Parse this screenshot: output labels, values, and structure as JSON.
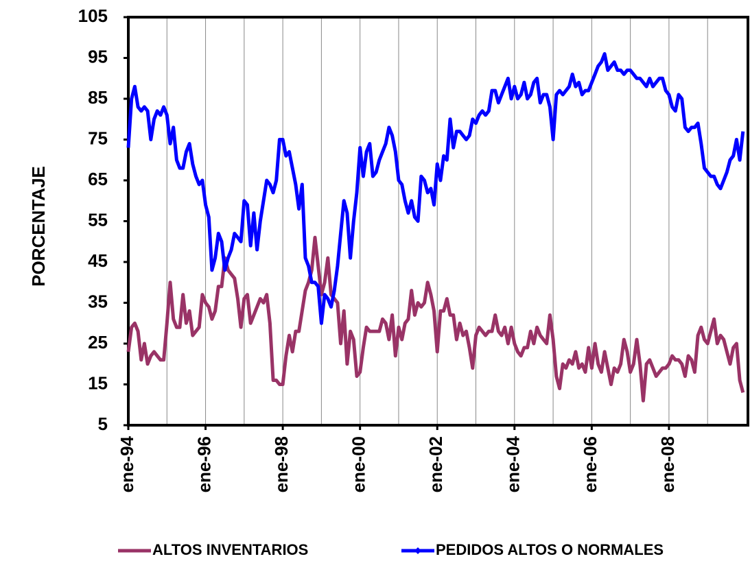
{
  "chart_data": {
    "type": "line",
    "ylabel": "PORCENTAJE",
    "categories": [
      "ene-94",
      null,
      null,
      null,
      null,
      null,
      null,
      null,
      null,
      null,
      null,
      null,
      null,
      null,
      null,
      null,
      null,
      null,
      null,
      null,
      null,
      null,
      null,
      null,
      "ene-96",
      null,
      null,
      null,
      null,
      null,
      null,
      null,
      null,
      null,
      null,
      null,
      null,
      null,
      null,
      null,
      null,
      null,
      null,
      null,
      null,
      null,
      null,
      null,
      "ene-98",
      null,
      null,
      null,
      null,
      null,
      null,
      null,
      null,
      null,
      null,
      null,
      null,
      null,
      null,
      null,
      null,
      null,
      null,
      null,
      null,
      null,
      null,
      null,
      "ene-00",
      null,
      null,
      null,
      null,
      null,
      null,
      null,
      null,
      null,
      null,
      null,
      null,
      null,
      null,
      null,
      null,
      null,
      null,
      null,
      null,
      null,
      null,
      null,
      "ene-02",
      null,
      null,
      null,
      null,
      null,
      null,
      null,
      null,
      null,
      null,
      null,
      null,
      null,
      null,
      null,
      null,
      null,
      null,
      null,
      null,
      null,
      null,
      null,
      "ene-04",
      null,
      null,
      null,
      null,
      null,
      null,
      null,
      null,
      null,
      null,
      null,
      null,
      null,
      null,
      null,
      null,
      null,
      null,
      null,
      null,
      null,
      null,
      null,
      "ene-06",
      null,
      null,
      null,
      null,
      null,
      null,
      null,
      null,
      null,
      null,
      null,
      null,
      null,
      null,
      null,
      null,
      null,
      null,
      null,
      null,
      null,
      null,
      null,
      "ene-08",
      null,
      null,
      null,
      null,
      null,
      null,
      null,
      null,
      null,
      null,
      null,
      null,
      null,
      null,
      null,
      null,
      null,
      null,
      null,
      null,
      null,
      null,
      null
    ],
    "series": [
      {
        "name": "ALTOS INVENTARIOS",
        "color": "#993366",
        "values": [
          23,
          29,
          30,
          28,
          21,
          25,
          20,
          22,
          23,
          22,
          21,
          21,
          30,
          40,
          31,
          29,
          29,
          37,
          30,
          33,
          27,
          28,
          29,
          37,
          35,
          34,
          31,
          33,
          39,
          39,
          46,
          43,
          42,
          41,
          36,
          29,
          36,
          37,
          30,
          32,
          34,
          36,
          35,
          37,
          30,
          16,
          16,
          15,
          15,
          22,
          27,
          23,
          28,
          28,
          33,
          38,
          40,
          43,
          51,
          44,
          37,
          40,
          46,
          37,
          36,
          35,
          25,
          33,
          20,
          28,
          26,
          17,
          18,
          24,
          29,
          28,
          28,
          28,
          28,
          31,
          30,
          26,
          32,
          22,
          29,
          26,
          30,
          31,
          38,
          32,
          35,
          34,
          35,
          40,
          37,
          33,
          23,
          33,
          33,
          36,
          32,
          32,
          26,
          30,
          27,
          28,
          24,
          19,
          27,
          29,
          28,
          27,
          28,
          28,
          32,
          28,
          27,
          29,
          25,
          29,
          25,
          23,
          22,
          24,
          24,
          28,
          25,
          29,
          27,
          26,
          25,
          32,
          26,
          17,
          14,
          20,
          19,
          21,
          20,
          23,
          19,
          20,
          18,
          24,
          19,
          25,
          20,
          18,
          23,
          19,
          15,
          19,
          18,
          20,
          26,
          23,
          18,
          20,
          26,
          20,
          11,
          20,
          21,
          19,
          17,
          18,
          19,
          19,
          20,
          22,
          21,
          21,
          20,
          17,
          22,
          21,
          18,
          27,
          29,
          26,
          25,
          28,
          31,
          25,
          27,
          26,
          23,
          20,
          24,
          25,
          16,
          13
        ]
      },
      {
        "name": "PEDIDOS ALTOS O NORMALES",
        "color": "#0000FF",
        "marker": "diamond",
        "values": [
          73,
          85,
          88,
          83,
          82,
          83,
          82,
          75,
          80,
          82,
          81,
          83,
          81,
          74,
          78,
          70,
          68,
          68,
          72,
          74,
          69,
          66,
          64,
          65,
          59,
          56,
          43,
          46,
          52,
          50,
          43,
          46,
          48,
          52,
          51,
          50,
          60,
          59,
          49,
          57,
          48,
          55,
          60,
          65,
          64,
          62,
          65,
          75,
          75,
          71,
          72,
          68,
          64,
          58,
          64,
          46,
          44,
          40,
          40,
          39,
          30,
          37,
          36,
          34,
          38,
          44,
          52,
          60,
          57,
          46,
          55,
          62,
          73,
          66,
          72,
          74,
          66,
          67,
          70,
          72,
          74,
          78,
          76,
          72,
          65,
          64,
          60,
          57,
          60,
          56,
          55,
          66,
          65,
          62,
          63,
          59,
          69,
          65,
          71,
          70,
          80,
          73,
          77,
          77,
          76,
          75,
          76,
          80,
          79,
          81,
          82,
          81,
          82,
          87,
          87,
          84,
          86,
          88,
          90,
          85,
          88,
          85,
          86,
          89,
          85,
          86,
          89,
          90,
          84,
          86,
          86,
          83,
          75,
          86,
          87,
          86,
          87,
          88,
          91,
          88,
          89,
          86,
          87,
          87,
          89,
          91,
          93,
          94,
          96,
          92,
          93,
          94,
          92,
          92,
          91,
          92,
          92,
          91,
          90,
          90,
          89,
          88,
          90,
          88,
          89,
          90,
          90,
          87,
          86,
          83,
          82,
          86,
          85,
          78,
          77,
          78,
          78,
          79,
          74,
          68,
          67,
          66,
          66,
          64,
          63,
          65,
          67,
          70,
          71,
          75,
          70,
          77
        ]
      }
    ],
    "ylim": [
      5,
      105
    ],
    "yticks": [
      5,
      15,
      25,
      35,
      45,
      55,
      65,
      75,
      85,
      95,
      105
    ],
    "grid": "x",
    "legend": "bottom"
  }
}
